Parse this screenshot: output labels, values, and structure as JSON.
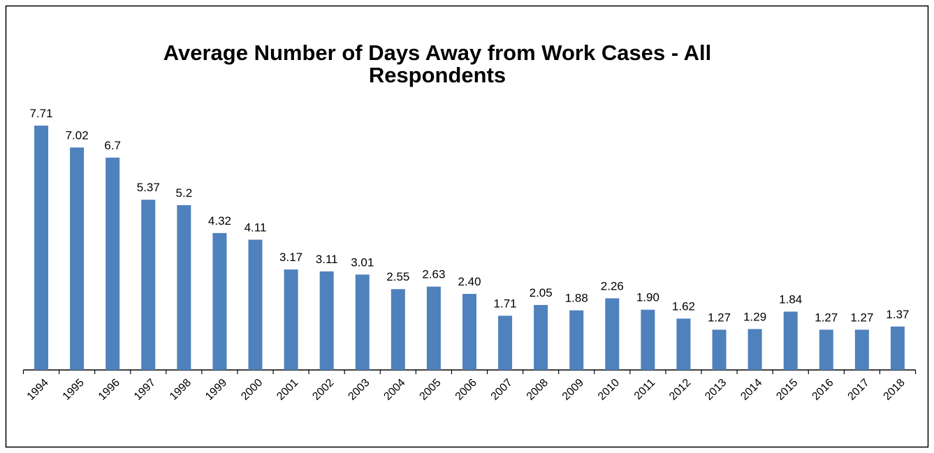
{
  "chart_data": {
    "type": "bar",
    "title": [
      "Average Number of Days Away from Work Cases - All",
      "Respondents"
    ],
    "categories": [
      "1994",
      "1995",
      "1996",
      "1997",
      "1998",
      "1999",
      "2000",
      "2001",
      "2002",
      "2003",
      "2004",
      "2005",
      "2006",
      "2007",
      "2008",
      "2009",
      "2010",
      "2011",
      "2012",
      "2013",
      "2014",
      "2015",
      "2016",
      "2017",
      "2018"
    ],
    "values": [
      7.71,
      7.02,
      6.7,
      5.37,
      5.2,
      4.32,
      4.11,
      3.17,
      3.11,
      3.01,
      2.55,
      2.63,
      2.4,
      1.71,
      2.05,
      1.88,
      2.26,
      1.9,
      1.62,
      1.27,
      1.29,
      1.84,
      1.27,
      1.27,
      1.37
    ],
    "value_labels": [
      "7.71",
      "7.02",
      "6.7",
      "5.37",
      "5.2",
      "4.32",
      "4.11",
      "3.17",
      "3.11",
      "3.01",
      "2.55",
      "2.63",
      "2.40",
      "1.71",
      "2.05",
      "1.88",
      "2.26",
      "1.90",
      "1.62",
      "1.27",
      "1.29",
      "1.84",
      "1.27",
      "1.27",
      "1.37"
    ],
    "color": "#4f81bd",
    "ylim": [
      0,
      8
    ]
  }
}
